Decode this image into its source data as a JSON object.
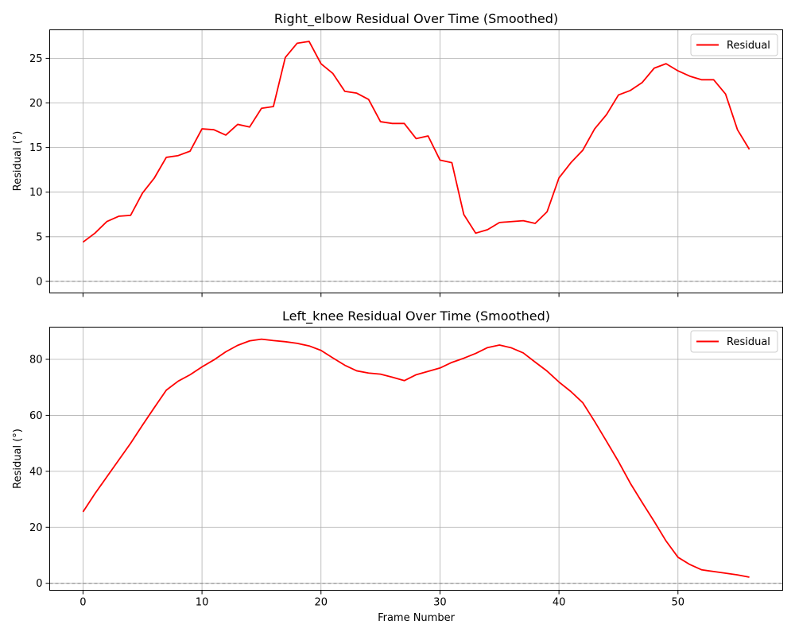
{
  "chart_data": [
    {
      "type": "line",
      "title": "Right_elbow Residual Over Time (Smoothed)",
      "xlabel": "",
      "ylabel": "Residual (°)",
      "xlim": [
        -2.8,
        58.8
      ],
      "ylim": [
        -1.3,
        28.2
      ],
      "xticks": [
        0,
        10,
        20,
        30,
        40,
        50
      ],
      "yticks": [
        0,
        5,
        10,
        15,
        20,
        25
      ],
      "xtick_labels_visible": false,
      "grid": true,
      "legend": "top-right",
      "reference_line": {
        "y": 0,
        "color": "#808080",
        "style": "dashed"
      },
      "series": [
        {
          "name": "Residual",
          "color": "#ff0000",
          "x": [
            0,
            1,
            2,
            3,
            4,
            5,
            6,
            7,
            8,
            9,
            10,
            11,
            12,
            13,
            14,
            15,
            16,
            17,
            18,
            19,
            20,
            21,
            22,
            23,
            24,
            25,
            26,
            27,
            28,
            29,
            30,
            31,
            32,
            33,
            34,
            35,
            36,
            37,
            38,
            39,
            40,
            41,
            42,
            43,
            44,
            45,
            46,
            47,
            48,
            49,
            50,
            51,
            52,
            53,
            54,
            55,
            56
          ],
          "values": [
            4.4,
            5.4,
            6.7,
            7.3,
            7.4,
            9.9,
            11.6,
            13.9,
            14.1,
            14.6,
            17.1,
            17.0,
            16.4,
            17.6,
            17.3,
            19.4,
            19.6,
            25.1,
            26.7,
            26.9,
            24.4,
            23.3,
            21.3,
            21.1,
            20.4,
            17.9,
            17.7,
            17.7,
            16.0,
            16.3,
            13.6,
            13.3,
            7.5,
            5.4,
            5.8,
            6.6,
            6.7,
            6.8,
            6.5,
            7.8,
            11.6,
            13.3,
            14.7,
            17.1,
            18.7,
            20.9,
            21.4,
            22.3,
            23.9,
            24.4,
            23.6,
            23.0,
            22.6,
            22.6,
            21.0,
            17.0,
            14.8
          ]
        }
      ]
    },
    {
      "type": "line",
      "title": "Left_knee Residual Over Time (Smoothed)",
      "xlabel": "Frame Number",
      "ylabel": "Residual (°)",
      "xlim": [
        -2.8,
        58.8
      ],
      "ylim": [
        -2.5,
        91.5
      ],
      "xticks": [
        0,
        10,
        20,
        30,
        40,
        50
      ],
      "yticks": [
        0,
        20,
        40,
        60,
        80
      ],
      "xtick_labels_visible": true,
      "grid": true,
      "legend": "top-right",
      "reference_line": {
        "y": 0,
        "color": "#808080",
        "style": "dashed"
      },
      "series": [
        {
          "name": "Residual",
          "color": "#ff0000",
          "x": [
            0,
            1,
            2,
            3,
            4,
            5,
            6,
            7,
            8,
            9,
            10,
            11,
            12,
            13,
            14,
            15,
            16,
            17,
            18,
            19,
            20,
            21,
            22,
            23,
            24,
            25,
            26,
            27,
            28,
            29,
            30,
            31,
            32,
            33,
            34,
            35,
            36,
            37,
            38,
            39,
            40,
            41,
            42,
            43,
            44,
            45,
            46,
            47,
            48,
            49,
            50,
            51,
            52,
            53,
            54,
            55,
            56
          ],
          "values": [
            25.5,
            32.0,
            38.0,
            44.0,
            50.0,
            56.5,
            62.8,
            69.0,
            72.2,
            74.5,
            77.3,
            79.8,
            82.7,
            85.0,
            86.6,
            87.2,
            86.7,
            86.3,
            85.7,
            84.8,
            83.2,
            80.5,
            77.9,
            75.9,
            75.1,
            74.7,
            73.6,
            72.4,
            74.5,
            75.7,
            76.9,
            78.9,
            80.4,
            82.1,
            84.2,
            85.1,
            84.1,
            82.3,
            79.0,
            75.8,
            71.9,
            68.5,
            64.5,
            57.8,
            50.7,
            43.5,
            35.7,
            28.8,
            22.1,
            15.1,
            9.3,
            6.7,
            4.8,
            4.2,
            3.6,
            3.0,
            2.2
          ]
        }
      ]
    }
  ]
}
